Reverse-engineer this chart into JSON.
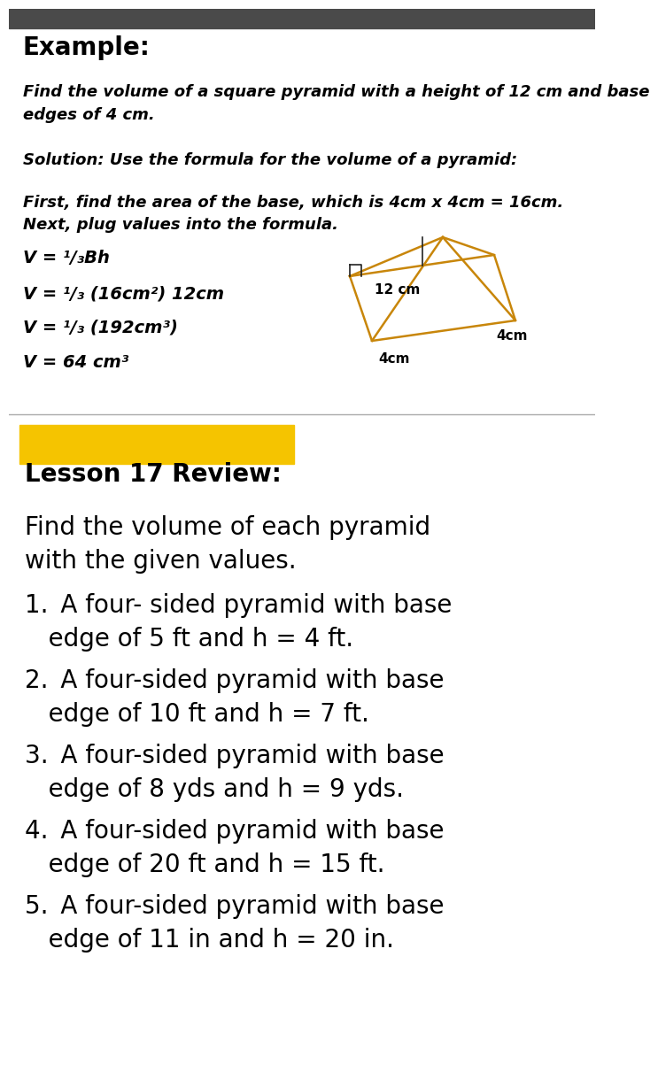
{
  "bg_color": "#ffffff",
  "top_bar_color": "#4a4a4a",
  "highlight_color": "#F5C400",
  "title": "Example:",
  "problem_text": "Find the volume of a square pyramid with a height of 12 cm and base\nedges of 4 cm.",
  "solution_intro": "Solution: Use the formula for the volume of a pyramid:",
  "step_line1": "First, find the area of the base, which is 4cm x 4cm = 16cm.",
  "step_line2": "Next, plug values into the formula.",
  "formula_line1": "V =",
  "formula_frac": "1",
  "formula_line1b": "Bh",
  "formula_lines": [
    "V = ¹/₃Bh",
    "V = ¹/₃ (16cm²) 12cm",
    "V = ¹/₃ (192cm³)",
    "V = 64 cm³"
  ],
  "review_title": "Lesson 17 Review:",
  "review_intro_line1": "Find the volume of each pyramid",
  "review_intro_line2": "with the given values.",
  "problem1_line1": "1. A four- sided pyramid with base",
  "problem1_line2": "   edge of 5 ft and h = 4 ft.",
  "problem2_line1": "2. A four-sided pyramid with base",
  "problem2_line2": "   edge of 10 ft and h = 7 ft.",
  "problem3_line1": "3. A four-sided pyramid with base",
  "problem3_line2": "   edge of 8 yds and h = 9 yds.",
  "problem4_line1": "4. A four-sided pyramid with base",
  "problem4_line2": "   edge of 20 ft and h = 15 ft.",
  "problem5_line1": "5. A four-sided pyramid with base",
  "problem5_line2": "   edge of 11 in and h = 20 in.",
  "pyramid_color": "#C8860A",
  "height_label": "12 cm",
  "base_label_left": "4cm",
  "base_label_right": "4cm",
  "divider_color": "#aaaaaa",
  "text_color": "#000000"
}
